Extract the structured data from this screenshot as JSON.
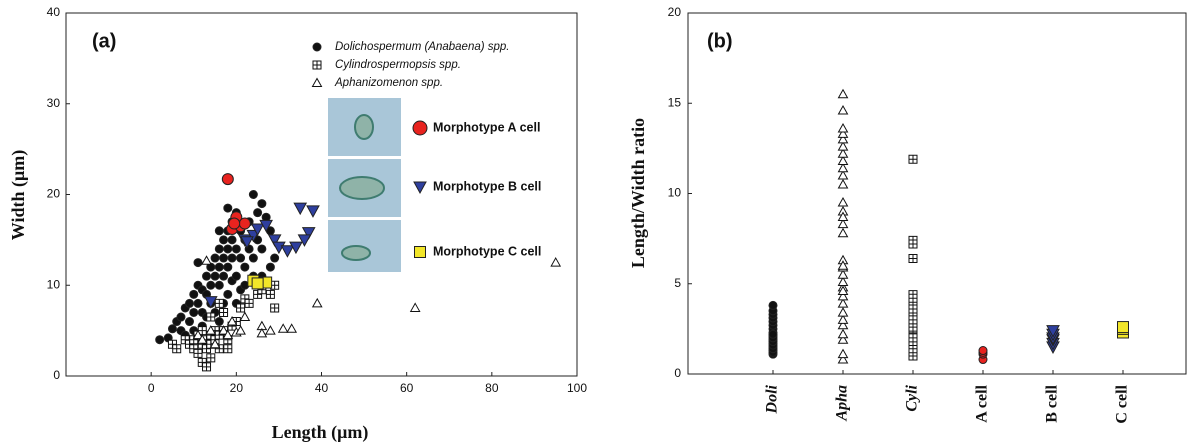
{
  "chart_data": [
    {
      "type": "scatter",
      "panel": "(a)",
      "x_label": "Length (μm)",
      "y_label": "Width (μm)",
      "xlim": [
        -20,
        100
      ],
      "xticks": [
        0,
        20,
        40,
        60,
        80,
        100
      ],
      "ylim": [
        0,
        40
      ],
      "yticks": [
        0,
        10,
        20,
        30,
        40
      ],
      "series": [
        {
          "name": "Dolichospermum (Anabaena) spp.",
          "color": "#111111",
          "marker": "circle",
          "x": [
            2,
            4,
            5,
            6,
            7,
            7,
            8,
            8,
            9,
            9,
            10,
            10,
            10,
            11,
            11,
            11,
            12,
            12,
            12,
            13,
            13,
            13,
            14,
            14,
            14,
            15,
            15,
            15,
            16,
            16,
            16,
            16,
            17,
            17,
            17,
            17,
            18,
            18,
            18,
            18,
            19,
            19,
            19,
            19,
            20,
            20,
            20,
            20,
            21,
            21,
            21,
            22,
            22,
            22,
            23,
            23,
            24,
            24,
            24,
            25,
            25,
            26,
            26,
            26,
            27,
            28,
            28,
            29,
            18,
            16
          ],
          "values": [
            4,
            4.2,
            5.2,
            6,
            6.5,
            5,
            7.5,
            4.5,
            8,
            6,
            9,
            7,
            5,
            10,
            12.5,
            8,
            9.5,
            7,
            5.5,
            11,
            9,
            6.5,
            12,
            10,
            8,
            13,
            11,
            7,
            14,
            12,
            10,
            6,
            15,
            13,
            11,
            8,
            16,
            14,
            12,
            9,
            17,
            15,
            13,
            10.5,
            18,
            14,
            11,
            8,
            16,
            13,
            9.5,
            15,
            12,
            10,
            17,
            14,
            13,
            11,
            20,
            18,
            15,
            19,
            14,
            11,
            17.5,
            16,
            12,
            13,
            18.5,
            16
          ]
        },
        {
          "name": "Cylindrospermopsis spp.",
          "color": "#111111",
          "marker": "square-plus",
          "x": [
            5,
            6,
            8,
            9,
            10,
            10,
            11,
            11,
            12,
            12,
            12,
            13,
            13,
            13,
            14,
            14,
            14,
            15,
            15,
            16,
            16,
            17,
            18,
            18,
            19,
            20,
            21,
            22,
            23,
            25,
            26,
            28,
            29,
            29,
            17,
            16,
            14
          ],
          "values": [
            3.5,
            3,
            4,
            3.5,
            3,
            4,
            2.5,
            4.5,
            1.5,
            3.5,
            5,
            1,
            3,
            4,
            2,
            3.5,
            4.5,
            4,
            5,
            4.5,
            3,
            5,
            4,
            3,
            5.5,
            6,
            7.5,
            8.5,
            8,
            9,
            9.5,
            9,
            10,
            7.5,
            7,
            8,
            6.5
          ]
        },
        {
          "name": "Aphanizomenon spp.",
          "color": "#111111",
          "marker": "triangle-up",
          "x": [
            13,
            11,
            12,
            15,
            17,
            18,
            20,
            21,
            22,
            26,
            26,
            28,
            31,
            33,
            39,
            62,
            95,
            19,
            14
          ],
          "values": [
            12.7,
            4.5,
            4,
            3.5,
            5,
            4.5,
            4.8,
            5,
            6.5,
            5.5,
            4.7,
            5,
            5.2,
            5.2,
            8,
            7.5,
            12.5,
            6,
            5
          ]
        },
        {
          "name": "Morphotype A cell",
          "color": "#e8231f",
          "marker": "circle-big",
          "x": [
            18,
            19,
            20,
            21,
            20,
            22,
            19.5
          ],
          "values": [
            21.7,
            16.2,
            17,
            16.5,
            17.5,
            16.8,
            16.8
          ]
        },
        {
          "name": "Morphotype B cell",
          "color": "#2e3f9e",
          "marker": "triangle-down",
          "x": [
            22,
            24,
            25,
            27,
            29,
            30,
            32,
            34,
            35,
            37,
            38,
            36,
            14,
            22.5
          ],
          "values": [
            15,
            15.5,
            16.2,
            16.6,
            15,
            14.2,
            13.8,
            14.2,
            18.5,
            15.8,
            18.2,
            15,
            8.2,
            14.8
          ]
        },
        {
          "name": "Morphotype C cell",
          "color": "#f2e629",
          "marker": "square",
          "x": [
            24,
            27,
            25
          ],
          "values": [
            10.5,
            10.3,
            10.2
          ]
        }
      ]
    },
    {
      "type": "strip",
      "panel": "(b)",
      "y_label": "Length/Width ratio",
      "categories": [
        "Doli",
        "Apha",
        "Cyli",
        "A cell",
        "B cell",
        "C cell"
      ],
      "ylim": [
        0,
        20
      ],
      "yticks": [
        0,
        5,
        10,
        15,
        20
      ],
      "groups": [
        {
          "color": "#111111",
          "marker": "circle",
          "values": [
            1.1,
            1.3,
            1.5,
            1.7,
            1.9,
            2.1,
            2.3,
            2.5,
            2.7,
            2.9,
            3.1,
            3.3,
            3.5,
            3.8,
            1.2,
            1.4,
            1.6,
            1.8,
            2.0,
            2.2
          ]
        },
        {
          "color": "#111111",
          "marker": "triangle-up",
          "values": [
            0.8,
            1.1,
            1.9,
            2.2,
            2.7,
            3.0,
            3.4,
            3.9,
            4.3,
            4.8,
            5.1,
            5.5,
            5.9,
            6.3,
            7.8,
            8.3,
            9.0,
            9.5,
            10.5,
            11.0,
            11.4,
            11.8,
            12.2,
            12.6,
            13.0,
            13.3,
            13.6,
            14.6,
            15.5,
            4.6,
            6.0,
            8.7
          ]
        },
        {
          "color": "#111111",
          "marker": "square-plus",
          "values": [
            1.0,
            1.4,
            1.8,
            2.2,
            2.5,
            2.8,
            3.1,
            3.4,
            3.7,
            4.0,
            4.4,
            6.4,
            7.4,
            7.2,
            11.9,
            2.0,
            2.6,
            3.0,
            3.6,
            4.2
          ]
        },
        {
          "color": "#e8231f",
          "marker": "circle",
          "values": [
            0.8,
            1.1,
            1.2,
            1.3
          ]
        },
        {
          "color": "#2e3f9e",
          "marker": "triangle-down",
          "values": [
            1.5,
            1.7,
            1.9,
            2.0,
            2.2,
            2.4
          ]
        },
        {
          "color": "#f2e629",
          "marker": "square",
          "values": [
            2.3,
            2.5,
            2.6
          ]
        }
      ]
    }
  ]
}
